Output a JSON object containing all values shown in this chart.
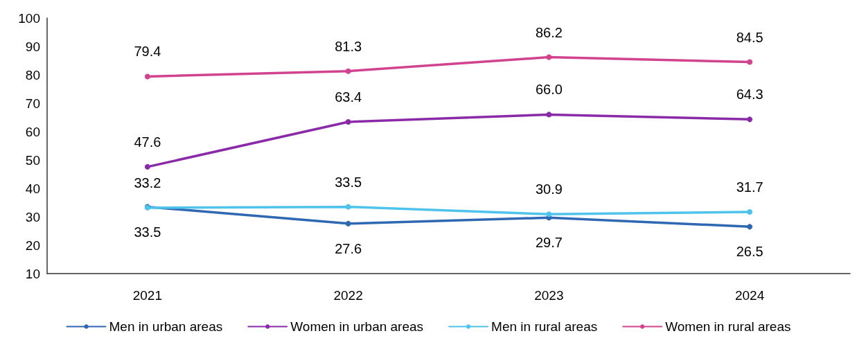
{
  "chart_data": {
    "type": "line",
    "categories": [
      "2021",
      "2022",
      "2023",
      "2024"
    ],
    "series": [
      {
        "name": "Men in urban areas",
        "color": "#2e67b2",
        "values": [
          33.5,
          27.6,
          29.7,
          26.5
        ],
        "value_labels": [
          "33.5",
          "27.6",
          "29.7",
          "26.5"
        ]
      },
      {
        "name": "Women in urban areas",
        "color": "#8a2aa8",
        "values": [
          47.6,
          63.4,
          66.0,
          64.3
        ],
        "value_labels": [
          "47.6",
          "63.4",
          "66.0",
          "64.3"
        ]
      },
      {
        "name": "Men in rural areas",
        "color": "#4fc3ec",
        "values": [
          33.2,
          33.5,
          30.9,
          31.7
        ],
        "value_labels": [
          "33.2",
          "33.5",
          "30.9",
          "31.7"
        ]
      },
      {
        "name": "Women in rural areas",
        "color": "#d1438e",
        "values": [
          79.4,
          81.3,
          86.2,
          84.5
        ],
        "value_labels": [
          "79.4",
          "81.3",
          "86.2",
          "84.5"
        ]
      }
    ],
    "ylim": [
      10,
      100
    ],
    "yticks": [
      10,
      20,
      30,
      40,
      50,
      60,
      70,
      80,
      90,
      100
    ],
    "grid": false,
    "legend": "bottom",
    "marker": "circle",
    "line_style": "solid"
  }
}
